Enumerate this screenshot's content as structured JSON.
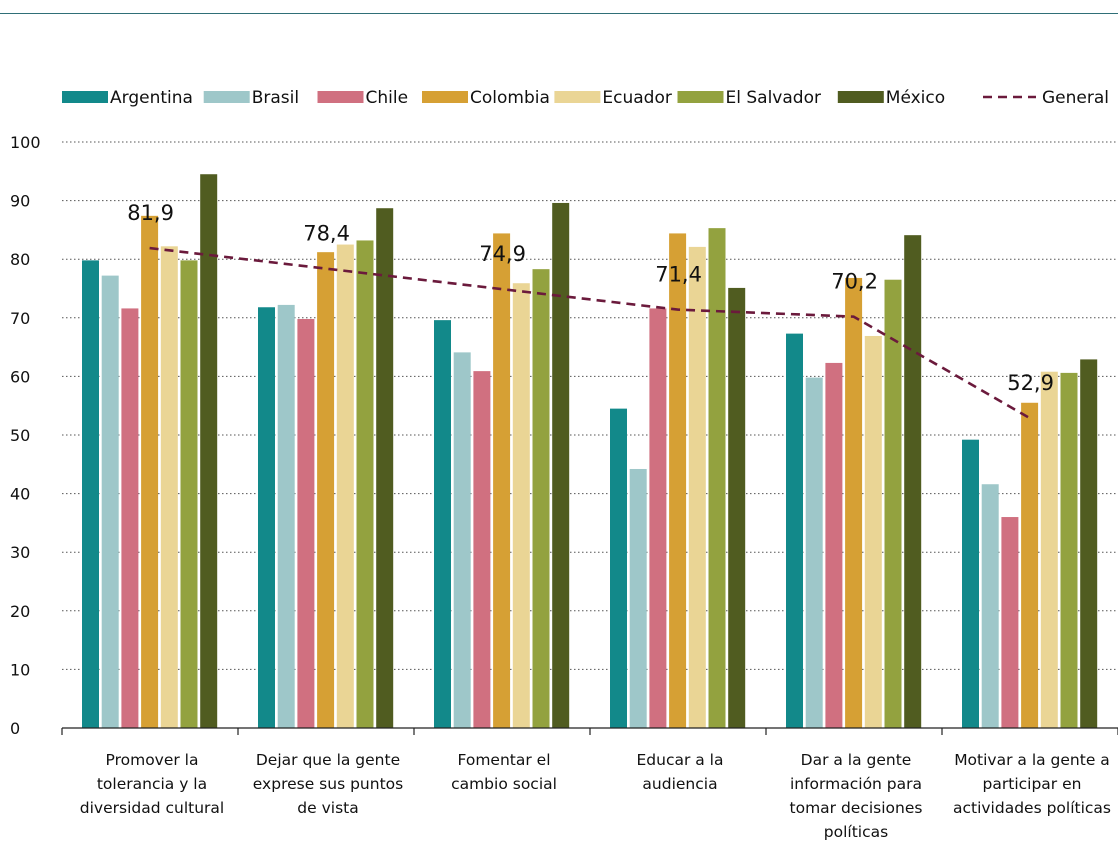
{
  "chart_data": {
    "type": "bar",
    "title": "",
    "xlabel": "",
    "ylabel": "",
    "ylim": [
      0,
      100
    ],
    "yticks": [
      0,
      10,
      20,
      30,
      40,
      50,
      60,
      70,
      80,
      90,
      100
    ],
    "grid": true,
    "legend_position": "top",
    "categories": [
      [
        "Promover la",
        "tolerancia y la",
        "diversidad cultural"
      ],
      [
        "Dejar que la gente",
        "exprese sus puntos",
        "de vista"
      ],
      [
        "Fomentar el",
        "cambio social"
      ],
      [
        "Educar a la",
        "audiencia"
      ],
      [
        "Dar a la gente",
        "información para",
        "tomar decisiones",
        "políticas"
      ],
      [
        "Motivar a la gente a",
        "participar en",
        "actividades políticas"
      ]
    ],
    "series": [
      {
        "name": "Argentina",
        "color": "#12898a",
        "values": [
          79.8,
          71.8,
          69.6,
          54.5,
          67.3,
          49.2
        ]
      },
      {
        "name": "Brasil",
        "color": "#9ec7c9",
        "values": [
          77.2,
          72.2,
          64.1,
          44.2,
          59.8,
          41.6
        ]
      },
      {
        "name": "Chile",
        "color": "#d07080",
        "values": [
          71.6,
          69.8,
          60.9,
          71.6,
          62.3,
          36.0
        ]
      },
      {
        "name": "Colombia",
        "color": "#d6a034",
        "values": [
          87.4,
          81.2,
          84.4,
          84.4,
          76.8,
          55.5
        ]
      },
      {
        "name": "Ecuador",
        "color": "#ead595",
        "values": [
          82.2,
          82.5,
          75.9,
          82.1,
          66.9,
          60.8
        ]
      },
      {
        "name": "El Salvador",
        "color": "#93a23f",
        "values": [
          79.8,
          83.2,
          78.3,
          85.3,
          76.5,
          60.6
        ]
      },
      {
        "name": "México",
        "color": "#505c20",
        "values": [
          94.5,
          88.7,
          89.6,
          75.1,
          84.1,
          62.9
        ]
      }
    ],
    "line": {
      "name": "General",
      "color": "#6b1a3c",
      "style": "dashed",
      "values": [
        81.9,
        78.4,
        74.9,
        71.4,
        70.2,
        52.9
      ],
      "labels": [
        "81,9",
        "78,4",
        "74,9",
        "71,4",
        "70,2",
        "52,9"
      ]
    }
  }
}
